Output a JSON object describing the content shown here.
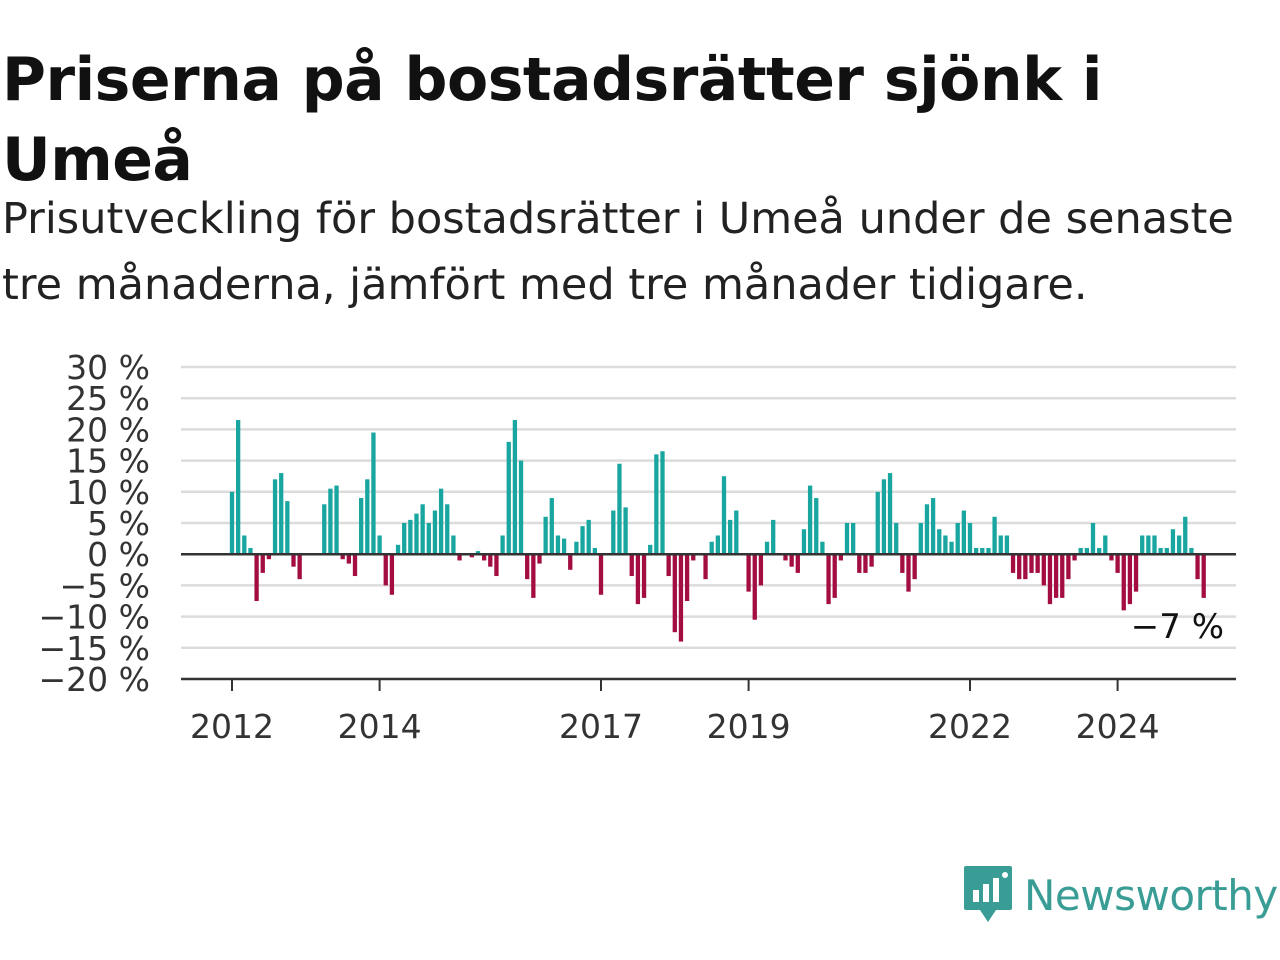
{
  "title": "Priserna på bostadsrätter sjönk i Umeå",
  "subtitle": "Prisutveckling för bostadsrätter i Umeå under de senaste tre månaderna, jämfört med tre månader tidigare.",
  "logo_text": "Newsworthy",
  "colors": {
    "positive": "#1aa6a0",
    "negative": "#a30d42",
    "grid": "#dcdcdc",
    "axis": "#333333",
    "logo": "#3a9d95"
  },
  "chart_data": {
    "type": "bar",
    "title": "Priserna på bostadsrätter sjönk i Umeå",
    "subtitle": "Prisutveckling för bostadsrätter i Umeå under de senaste tre månaderna, jämfört med tre månader tidigare.",
    "xlabel": "",
    "ylabel": "",
    "ylim": [
      -20,
      30
    ],
    "y_ticks": [
      30,
      25,
      20,
      15,
      10,
      5,
      0,
      -5,
      -10,
      -15,
      -20
    ],
    "y_tick_labels": [
      "30 %",
      "25 %",
      "20 %",
      "15 %",
      "10 %",
      "5 %",
      "0 %",
      "−5 %",
      "−10 %",
      "−15 %",
      "−20 %"
    ],
    "x_start": "2012-01",
    "x_ticks": [
      {
        "label": "2012",
        "month": "2012-01"
      },
      {
        "label": "2014",
        "month": "2014-01"
      },
      {
        "label": "2017",
        "month": "2017-01"
      },
      {
        "label": "2019",
        "month": "2019-01"
      },
      {
        "label": "2022",
        "month": "2022-01"
      },
      {
        "label": "2024",
        "month": "2024-01"
      }
    ],
    "grid": true,
    "annotation": "−7 %",
    "values": [
      10,
      21.5,
      3,
      1,
      -7.5,
      -3,
      -0.8,
      12,
      13,
      8.5,
      -2,
      -4,
      0,
      0,
      0,
      8,
      10.5,
      11,
      -0.8,
      -1.5,
      -3.5,
      9,
      12,
      19.5,
      3,
      -5,
      -6.5,
      1.5,
      5,
      5.5,
      6.5,
      8,
      5,
      7,
      10.5,
      8,
      3,
      -1,
      0,
      -0.5,
      0.5,
      -1,
      -2,
      -3.5,
      3,
      18,
      21.5,
      15,
      -4,
      -7,
      -1.5,
      6,
      9,
      3,
      2.5,
      -2.5,
      2,
      4.5,
      5.5,
      1,
      -6.5,
      0,
      7,
      14.5,
      7.5,
      -3.5,
      -8,
      -7,
      1.5,
      16,
      16.5,
      -3.5,
      -12.5,
      -14,
      -7.5,
      -1,
      0,
      -4,
      2,
      3,
      12.5,
      5.5,
      7,
      0,
      -6,
      -10.5,
      -5,
      2,
      5.5,
      0,
      -1,
      -2,
      -3,
      4,
      11,
      9,
      2,
      -8,
      -7,
      -1,
      5,
      5,
      -3,
      -3,
      -2,
      10,
      12,
      13,
      5,
      -3,
      -6,
      -4,
      5,
      8,
      9,
      4,
      3,
      2,
      5,
      7,
      5,
      1,
      1,
      1,
      6,
      3,
      3,
      -3,
      -4,
      -4,
      -3,
      -3,
      -5,
      -8,
      -7,
      -7,
      -4,
      -1,
      1,
      1,
      5,
      1,
      3,
      -1,
      -3,
      -9,
      -8,
      -6,
      3,
      3,
      3,
      1,
      1,
      4,
      3,
      6,
      1,
      -4,
      -7
    ]
  }
}
